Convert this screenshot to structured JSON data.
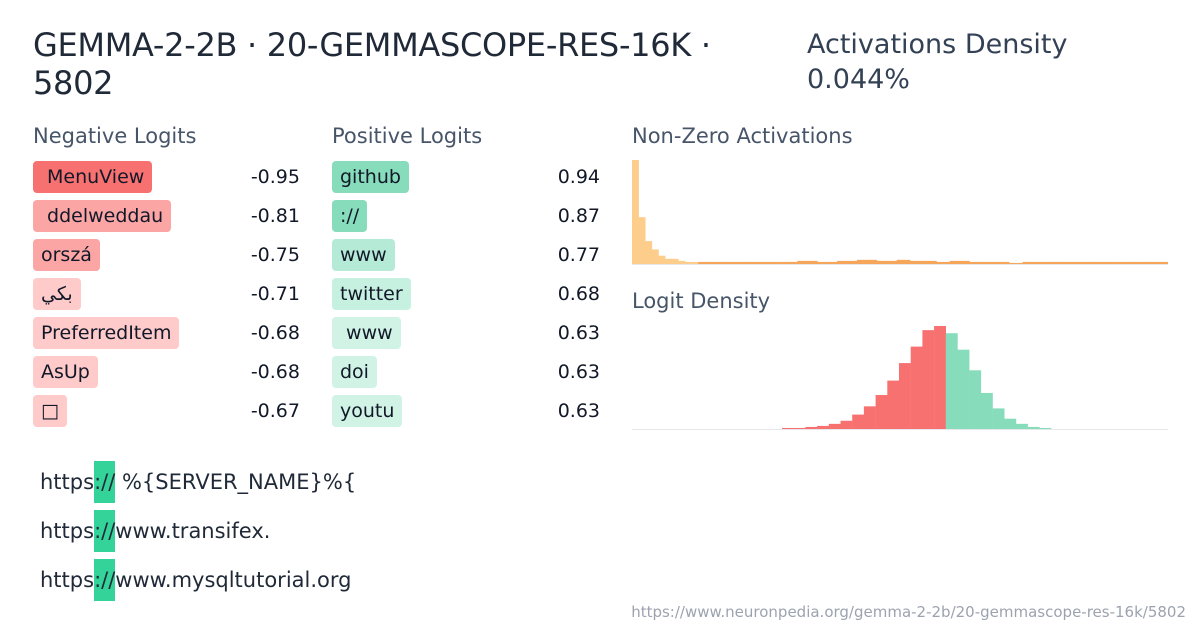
{
  "header": {
    "title": "GEMMA-2-2B · 20-GEMMASCOPE-RES-16K · 5802",
    "density_label": "Activations Density",
    "density_value": "0.044%"
  },
  "negative": {
    "heading": "Negative Logits",
    "items": [
      {
        "token": " MenuView",
        "value": "-0.95",
        "color": "#f87171"
      },
      {
        "token": " ddelweddau",
        "value": "-0.81",
        "color": "#fca5a5"
      },
      {
        "token": "orszá",
        "value": "-0.75",
        "color": "#fca5a5"
      },
      {
        "token": "بكي",
        "value": "-0.71",
        "color": "#fecaca"
      },
      {
        "token": "PreferredItem",
        "value": "-0.68",
        "color": "#fecaca"
      },
      {
        "token": "AsUp",
        "value": "-0.68",
        "color": "#fecaca"
      },
      {
        "token": "□",
        "value": "-0.67",
        "color": "#fecaca"
      }
    ]
  },
  "positive": {
    "heading": "Positive Logits",
    "items": [
      {
        "token": "github",
        "value": "0.94",
        "color": "#86dcbb"
      },
      {
        "token": "://",
        "value": "0.87",
        "color": "#86dcbb"
      },
      {
        "token": "www",
        "value": "0.77",
        "color": "#b4ead6"
      },
      {
        "token": "twitter",
        "value": "0.68",
        "color": "#c6f0e0"
      },
      {
        "token": " www",
        "value": "0.63",
        "color": "#d1f3e6"
      },
      {
        "token": "doi",
        "value": "0.63",
        "color": "#d1f3e6"
      },
      {
        "token": "youtu",
        "value": "0.63",
        "color": "#d1f3e6"
      }
    ]
  },
  "charts": {
    "nonzero_heading": "Non-Zero Activations",
    "logit_heading": "Logit Density"
  },
  "chart_data": [
    {
      "type": "bar",
      "title": "Non-Zero Activations",
      "color": "#fdcd8c",
      "color_tail": "#f5a65b",
      "values": [
        100,
        45,
        22,
        14,
        8,
        5,
        5,
        3,
        2,
        2,
        2,
        2,
        2,
        2,
        2,
        2,
        2,
        2,
        2,
        2,
        2,
        2,
        2,
        2,
        2,
        3,
        3,
        3,
        2,
        2,
        2,
        3,
        3,
        3,
        4,
        4,
        4,
        3,
        3,
        3,
        4,
        4,
        3,
        3,
        3,
        3,
        2,
        2,
        3,
        3,
        3,
        2,
        2,
        2,
        2,
        2,
        2,
        1,
        1,
        2,
        2,
        2,
        2,
        2,
        2,
        2,
        2,
        2,
        2,
        2,
        2,
        2,
        2,
        2,
        2,
        2,
        2,
        2,
        2,
        2,
        2
      ]
    },
    {
      "type": "bar",
      "title": "Logit Density",
      "negative_color": "#f87171",
      "positive_color": "#86dcbb",
      "negative_values": [
        1,
        1,
        2,
        3,
        5,
        8,
        14,
        22,
        33,
        47,
        64,
        80,
        96,
        100
      ],
      "positive_values": [
        93,
        77,
        57,
        35,
        20,
        10,
        5,
        2,
        1
      ]
    }
  ],
  "examples": [
    {
      "before": "https",
      "highlight": "://",
      "after": " %{SERVER_NAME}%{"
    },
    {
      "before": "https",
      "highlight": "://",
      "after": "www.transifex."
    },
    {
      "before": "https",
      "highlight": "://",
      "after": "www.mysqltutorial.org"
    }
  ],
  "footer": {
    "url": "https://www.neuronpedia.org/gemma-2-2b/20-gemmascope-res-16k/5802"
  }
}
